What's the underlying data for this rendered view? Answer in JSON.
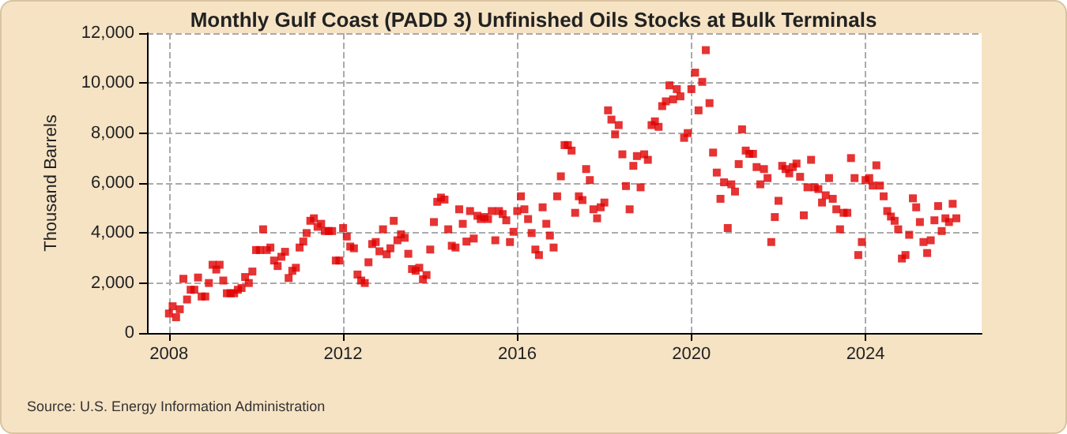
{
  "chart_data": {
    "type": "scatter",
    "title": "Monthly Gulf Coast (PADD 3) Unfinished Oils Stocks at Bulk Terminals",
    "ylabel": "Thousand Barrels",
    "annotations": [
      "Source: U.S. Energy Information Administration"
    ],
    "x": [
      "2008-01",
      "2008-02",
      "2008-03",
      "2008-04",
      "2008-05",
      "2008-06",
      "2008-07",
      "2008-08",
      "2008-09",
      "2008-10",
      "2008-11",
      "2008-12",
      "2009-01",
      "2009-02",
      "2009-03",
      "2009-04",
      "2009-05",
      "2009-06",
      "2009-07",
      "2009-08",
      "2009-09",
      "2009-10",
      "2009-11",
      "2009-12",
      "2010-01",
      "2010-02",
      "2010-03",
      "2010-04",
      "2010-05",
      "2010-06",
      "2010-07",
      "2010-08",
      "2010-09",
      "2010-10",
      "2010-11",
      "2010-12",
      "2011-01",
      "2011-02",
      "2011-03",
      "2011-04",
      "2011-05",
      "2011-06",
      "2011-07",
      "2011-08",
      "2011-09",
      "2011-10",
      "2011-11",
      "2011-12",
      "2012-01",
      "2012-02",
      "2012-03",
      "2012-04",
      "2012-05",
      "2012-06",
      "2012-07",
      "2012-08",
      "2012-09",
      "2012-10",
      "2012-11",
      "2012-12",
      "2013-01",
      "2013-02",
      "2013-03",
      "2013-04",
      "2013-05",
      "2013-06",
      "2013-07",
      "2013-08",
      "2013-09",
      "2013-10",
      "2013-11",
      "2013-12",
      "2014-01",
      "2014-02",
      "2014-03",
      "2014-04",
      "2014-05",
      "2014-06",
      "2014-07",
      "2014-08",
      "2014-09",
      "2014-10",
      "2014-11",
      "2014-12",
      "2015-01",
      "2015-02",
      "2015-03",
      "2015-04",
      "2015-05",
      "2015-06",
      "2015-07",
      "2015-08",
      "2015-09",
      "2015-10",
      "2015-11",
      "2015-12",
      "2016-01",
      "2016-02",
      "2016-03",
      "2016-04",
      "2016-05",
      "2016-06",
      "2016-07",
      "2016-08",
      "2016-09",
      "2016-10",
      "2016-11",
      "2016-12",
      "2017-01",
      "2017-02",
      "2017-03",
      "2017-04",
      "2017-05",
      "2017-06",
      "2017-07",
      "2017-08",
      "2017-09",
      "2017-10",
      "2017-11",
      "2017-12",
      "2018-01",
      "2018-02",
      "2018-03",
      "2018-04",
      "2018-05",
      "2018-06",
      "2018-07",
      "2018-08",
      "2018-09",
      "2018-10",
      "2018-11",
      "2018-12",
      "2019-01",
      "2019-02",
      "2019-03",
      "2019-04",
      "2019-05",
      "2019-06",
      "2019-07",
      "2019-08",
      "2019-09",
      "2019-10",
      "2019-11",
      "2019-12",
      "2020-01",
      "2020-02",
      "2020-03",
      "2020-04",
      "2020-05",
      "2020-06",
      "2020-07",
      "2020-08",
      "2020-09",
      "2020-10",
      "2020-11",
      "2020-12",
      "2021-01",
      "2021-02",
      "2021-03",
      "2021-04",
      "2021-05",
      "2021-06",
      "2021-07",
      "2021-08",
      "2021-09",
      "2021-10",
      "2021-11",
      "2021-12",
      "2022-01",
      "2022-02",
      "2022-03",
      "2022-04",
      "2022-05",
      "2022-06",
      "2022-07",
      "2022-08",
      "2022-09",
      "2022-10",
      "2022-11",
      "2022-12",
      "2023-01",
      "2023-02",
      "2023-03",
      "2023-04",
      "2023-05",
      "2023-06",
      "2023-07",
      "2023-08",
      "2023-09",
      "2023-10",
      "2023-11",
      "2023-12",
      "2024-01",
      "2024-02",
      "2024-03",
      "2024-04",
      "2024-05",
      "2024-06",
      "2024-07",
      "2024-08",
      "2024-09",
      "2024-10",
      "2024-11",
      "2024-12",
      "2025-01",
      "2025-02",
      "2025-03",
      "2025-04",
      "2025-05",
      "2025-06",
      "2025-07",
      "2025-08",
      "2025-09",
      "2025-10",
      "2025-11",
      "2025-12",
      "2026-01",
      "2026-02"
    ],
    "values": [
      780,
      1070,
      630,
      950,
      2170,
      1340,
      1730,
      1730,
      2220,
      1460,
      1460,
      2000,
      2730,
      2540,
      2730,
      2100,
      1590,
      1590,
      1590,
      1730,
      1800,
      2240,
      2000,
      2460,
      3320,
      3320,
      4150,
      3320,
      3420,
      2900,
      2680,
      3050,
      3250,
      2200,
      2490,
      2610,
      3420,
      3660,
      4000,
      4490,
      4590,
      4250,
      4370,
      4080,
      4080,
      4080,
      2900,
      2900,
      4200,
      3860,
      3460,
      3390,
      2340,
      2100,
      2000,
      2830,
      3560,
      3640,
      3270,
      4150,
      3150,
      3390,
      4490,
      3710,
      3950,
      3810,
      3170,
      2560,
      2490,
      2610,
      2150,
      2320,
      3340,
      4440,
      5250,
      5420,
      5340,
      4150,
      3490,
      3420,
      4950,
      4370,
      3660,
      4880,
      3780,
      4690,
      4560,
      4640,
      4560,
      4880,
      3710,
      4880,
      4760,
      4510,
      3640,
      4050,
      4880,
      5470,
      4950,
      4560,
      4000,
      3340,
      3120,
      5030,
      4370,
      3900,
      3420,
      5470,
      6270,
      7520,
      7520,
      7300,
      4810,
      5470,
      5320,
      6560,
      6120,
      4950,
      4590,
      5030,
      5220,
      8910,
      8540,
      7950,
      8320,
      7150,
      5880,
      4950,
      6690,
      7080,
      5830,
      7150,
      6930,
      8320,
      8470,
      8250,
      9080,
      9270,
      9910,
      9350,
      9760,
      9470,
      7810,
      8000,
      9760,
      10420,
      8910,
      10050,
      11320,
      9200,
      7220,
      6420,
      5370,
      6030,
      4200,
      5950,
      5660,
      6760,
      8150,
      7300,
      7170,
      7170,
      6640,
      5950,
      6560,
      6200,
      3640,
      4640,
      5290,
      6690,
      6560,
      6390,
      6640,
      6780,
      6250,
      4710,
      5830,
      6930,
      5830,
      5760,
      5220,
      5510,
      6200,
      5370,
      4950,
      4150,
      4810,
      4810,
      7000,
      6200,
      3120,
      3640,
      6120,
      6200,
      5900,
      6710,
      5900,
      5470,
      4880,
      4660,
      4490,
      4150,
      2980,
      3120,
      3930,
      5390,
      5030,
      4440,
      3640,
      3200,
      3710,
      4510,
      5080,
      4080,
      4590,
      4440,
      5170,
      4590
    ],
    "color": "#e00000",
    "marker": "square",
    "xlim": [
      "2007-07",
      "2026-09"
    ],
    "xticks": [
      "2008",
      "2012",
      "2016",
      "2020",
      "2024"
    ],
    "ylim": [
      0,
      12000
    ],
    "yticks": [
      0,
      {
        "value": 2000,
        "label": "2,000"
      },
      {
        "value": 4000,
        "label": "4,000"
      },
      {
        "value": 6000,
        "label": "6,000"
      },
      {
        "value": 8000,
        "label": "8,000"
      },
      {
        "value": 10000,
        "label": "10,000"
      },
      {
        "value": 12000,
        "label": "12,000"
      }
    ],
    "grid": true
  }
}
